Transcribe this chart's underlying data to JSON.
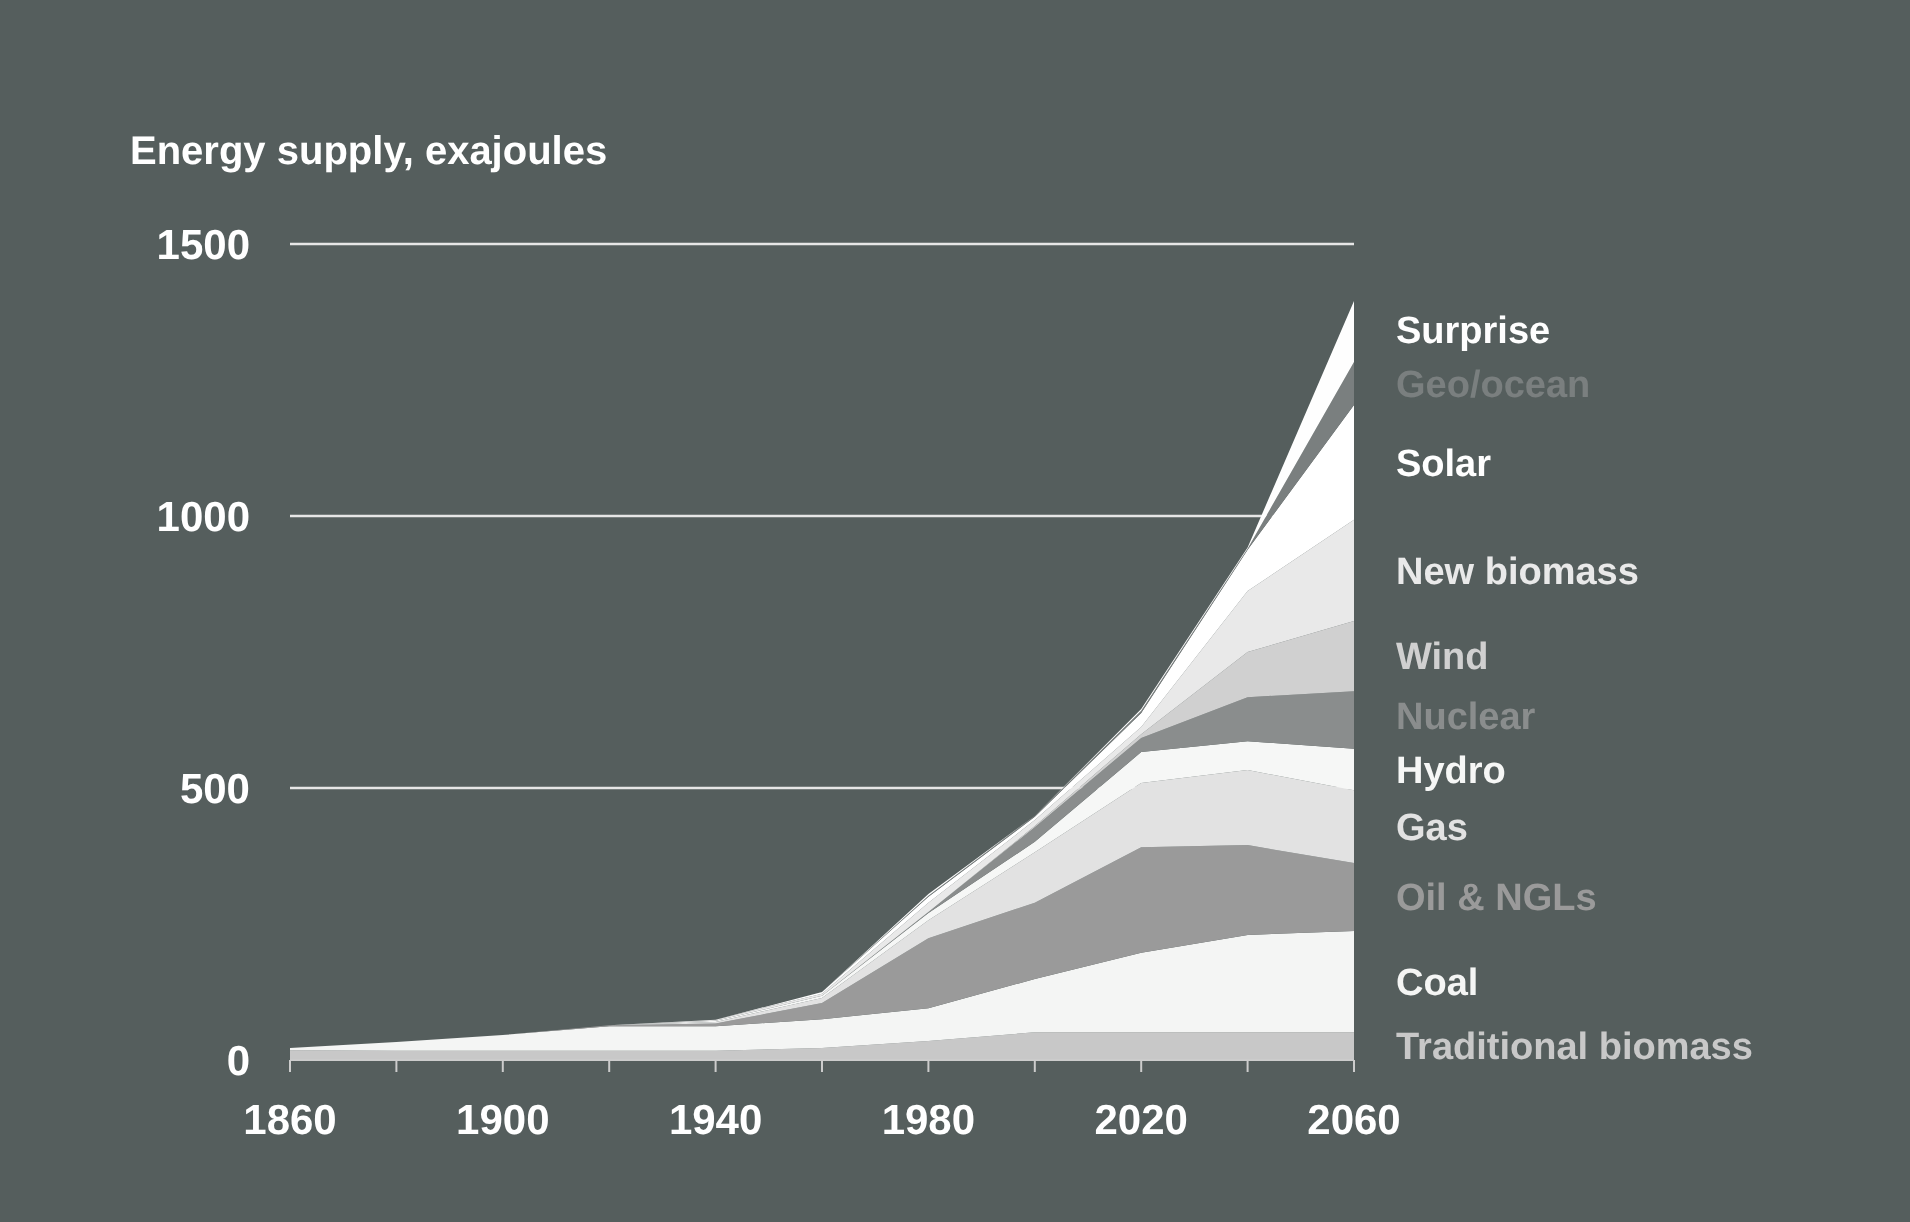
{
  "chart_data": {
    "type": "area",
    "stacked": true,
    "title": "Energy supply, exajoules",
    "x": [
      1860,
      1880,
      1900,
      1920,
      1940,
      1960,
      1980,
      2000,
      2020,
      2040,
      2060
    ],
    "xlim": [
      1860,
      2060
    ],
    "xticks": [
      1860,
      {
        "value": 1880,
        "label": null
      },
      1900,
      {
        "value": 1920,
        "label": null
      },
      1940,
      {
        "value": 1960,
        "label": null
      },
      1980,
      {
        "value": 2000,
        "label": null
      },
      2020,
      {
        "value": 2040,
        "label": null
      },
      2060
    ],
    "ylim": [
      0,
      1500
    ],
    "yticks": [
      0,
      500,
      1000,
      1500
    ],
    "grid": "y",
    "legend": "right",
    "series": [
      {
        "name": "Traditional biomass",
        "color": "#c8c8c8",
        "values": [
          18,
          17,
          17,
          17,
          17,
          22,
          35,
          51,
          51,
          51,
          51
        ]
      },
      {
        "name": "Coal",
        "color": "#f4f5f4",
        "values": [
          4,
          16,
          29,
          45,
          45,
          53,
          60,
          98,
          146,
          179,
          186
        ]
      },
      {
        "name": "Oil & NGLs",
        "color": "#9a9a9a",
        "values": [
          0,
          0,
          0,
          2,
          5,
          30,
          129,
          140,
          194,
          165,
          125
        ]
      },
      {
        "name": "Gas",
        "color": "#e2e2e2",
        "values": [
          0,
          0,
          0,
          0,
          3,
          9,
          33,
          93,
          118,
          138,
          134
        ]
      },
      {
        "name": "Hydro",
        "color": "#f6f7f6",
        "values": [
          0,
          0,
          0,
          0,
          2,
          4,
          13,
          19,
          57,
          53,
          76
        ]
      },
      {
        "name": "Nuclear",
        "color": "#8a8d8d",
        "values": [
          0,
          0,
          0,
          0,
          0,
          0,
          2,
          27,
          26,
          81,
          106
        ]
      },
      {
        "name": "Wind",
        "color": "#d0d0d0",
        "values": [
          0,
          0,
          0,
          0,
          0,
          0,
          0,
          2,
          7,
          83,
          129
        ]
      },
      {
        "name": "New biomass",
        "color": "#e9e9e9",
        "values": [
          0,
          0,
          0,
          0,
          2,
          4,
          17,
          11,
          13,
          112,
          186
        ]
      },
      {
        "name": "Solar",
        "color": "#ffffff",
        "values": [
          0,
          0,
          0,
          0,
          0,
          3,
          11,
          6,
          26,
          76,
          211
        ]
      },
      {
        "name": "Geo/ocean",
        "color": "#7a7f7f",
        "values": [
          0,
          0,
          0,
          0,
          0,
          0,
          2,
          2,
          4,
          2,
          79
        ]
      },
      {
        "name": "Surprise",
        "color": "#fefefe",
        "values": [
          0,
          0,
          0,
          0,
          0,
          0,
          3,
          0,
          3,
          2,
          112
        ]
      }
    ]
  }
}
